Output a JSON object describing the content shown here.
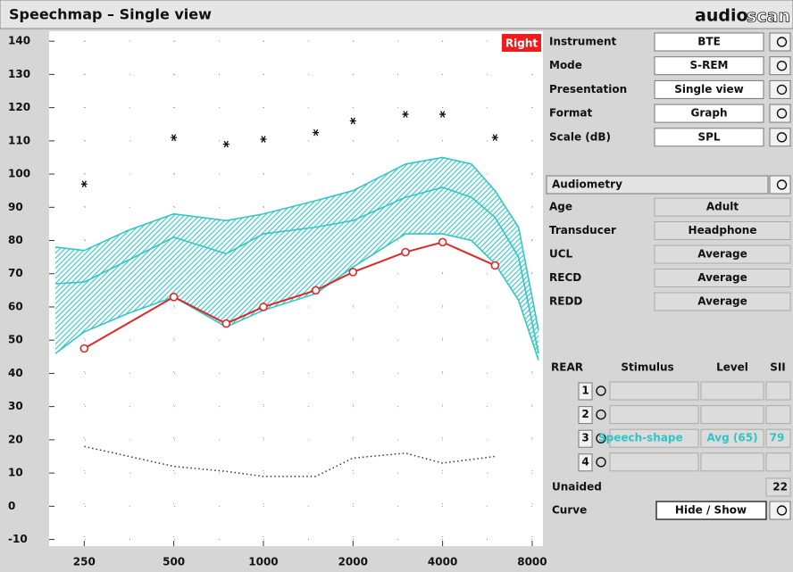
{
  "header": {
    "title": "Speechmap – Single view",
    "logo": [
      "audio",
      "scan"
    ]
  },
  "chart_data": {
    "type": "speechmap",
    "badge": "Right",
    "xscale": "log",
    "xlim": [
      200,
      8400
    ],
    "ylim": [
      -12,
      143
    ],
    "xticks": [
      250,
      500,
      1000,
      2000,
      4000,
      8000
    ],
    "yticks": [
      -10,
      0,
      10,
      20,
      30,
      40,
      50,
      60,
      70,
      80,
      90,
      100,
      110,
      120,
      130,
      140
    ],
    "grid": true,
    "band": {
      "color": "#33c6c6",
      "x": [
        200,
        250,
        350,
        500,
        750,
        1000,
        1500,
        2000,
        3000,
        4000,
        5000,
        6000,
        7200,
        8400
      ],
      "upper": [
        78,
        77,
        83,
        88,
        86,
        88,
        92,
        95,
        103,
        105,
        103,
        95,
        84,
        53
      ],
      "middle": [
        67,
        67.5,
        74,
        81,
        76,
        82,
        84,
        86,
        93,
        96,
        93,
        87,
        75,
        46
      ],
      "lower": [
        46,
        52.5,
        58,
        63,
        54,
        59,
        64,
        72,
        82,
        82,
        80,
        73,
        62,
        44
      ]
    },
    "series": [
      {
        "style": "asterisk",
        "color": "#111111",
        "x": [
          250,
          500,
          750,
          1000,
          1500,
          2000,
          3000,
          4000,
          6000
        ],
        "values": [
          97,
          111,
          109,
          110.5,
          112.5,
          116,
          118,
          118,
          111
        ]
      },
      {
        "style": "line-circle",
        "color": "#e02828",
        "x": [
          250,
          500,
          750,
          1000,
          1500,
          2000,
          3000,
          4000,
          6000
        ],
        "values": [
          47.5,
          63,
          55,
          60,
          65,
          70.5,
          76.5,
          79.5,
          72.5
        ]
      },
      {
        "style": "dotted",
        "color": "#333333",
        "x": [
          250,
          500,
          750,
          1000,
          1500,
          2000,
          3000,
          4000,
          6000
        ],
        "values": [
          18,
          12,
          10.5,
          9,
          9,
          14.5,
          16,
          13,
          15
        ]
      }
    ]
  },
  "panel": {
    "settings": [
      {
        "label": "Instrument",
        "value": "BTE"
      },
      {
        "label": "Mode",
        "value": "S-REM"
      },
      {
        "label": "Presentation",
        "value": "Single view"
      },
      {
        "label": "Format",
        "value": "Graph"
      },
      {
        "label": "Scale (dB)",
        "value": "SPL"
      }
    ],
    "audiometry": "Audiometry",
    "info": [
      {
        "label": "Age",
        "value": "Adult"
      },
      {
        "label": "Transducer",
        "value": "Headphone"
      },
      {
        "label": "UCL",
        "value": "Average"
      },
      {
        "label": "RECD",
        "value": "Average"
      },
      {
        "label": "REDD",
        "value": "Average"
      }
    ],
    "rear": {
      "headers": [
        "REAR",
        "Stimulus",
        "Level",
        "SII"
      ],
      "rows": [
        {
          "num": "1"
        },
        {
          "num": "2"
        },
        {
          "num": "3",
          "stimulus": "Speech-shape",
          "level": "Avg (65)",
          "sii": "79"
        },
        {
          "num": "4"
        }
      ]
    },
    "unaided": {
      "label": "Unaided",
      "sii": "22"
    },
    "curve": {
      "label": "Curve",
      "button": "Hide / Show"
    }
  }
}
